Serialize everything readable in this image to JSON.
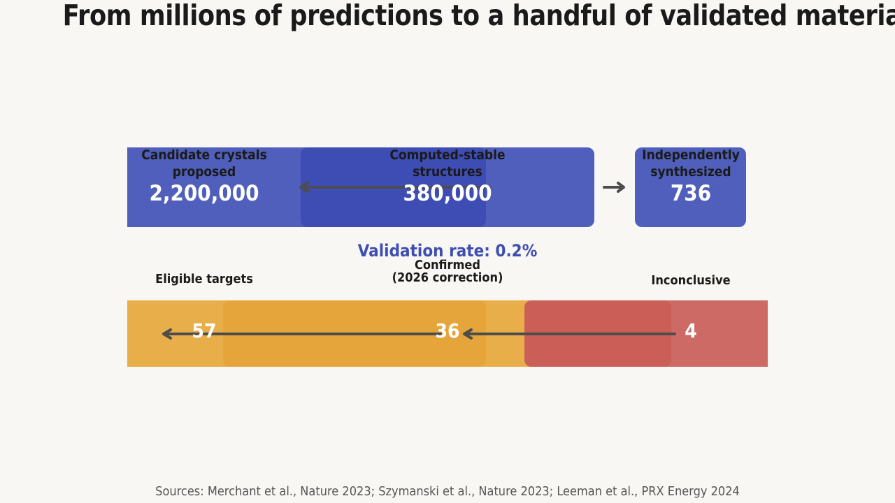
{
  "title": "From millions of predictions to a handful of validated materials",
  "colors": {
    "blue": "#4f5fbb",
    "gold": "#e8ae4a",
    "red": "#cd6a66",
    "rate_text": "#3d4db3",
    "background": "#f9f7f3"
  },
  "computational": {
    "candidates": {
      "label": "Candidate crystals\nproposed",
      "value": "2,200,000"
    },
    "stable": {
      "label": "Computed-stable\nstructures",
      "value": "380,000"
    },
    "synthesized": {
      "label": "Independently\nsynthesized",
      "value": "736"
    }
  },
  "validation_rate": "Validation rate: 0.2%",
  "experimental": {
    "eligible": {
      "label": "Eligible targets",
      "value": "57"
    },
    "confirmed": {
      "label": "Confirmed\n(2026 correction)",
      "value": "36"
    },
    "inconclusive": {
      "label": "Inconclusive",
      "value": "4"
    }
  },
  "sources": "Sources: Merchant et al., Nature 2023; Szymanski et al., Nature 2023; Leeman et al., PRX Energy 2024"
}
